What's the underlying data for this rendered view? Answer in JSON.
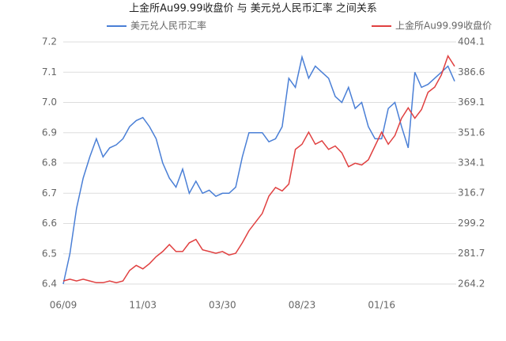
{
  "chart_data": {
    "type": "line",
    "title": "上金所Au99.99收盘价 与 美元兑人民币汇率 之间关系",
    "categories": [
      "06/09",
      null,
      null,
      null,
      null,
      null,
      null,
      null,
      null,
      null,
      null,
      null,
      "11/03",
      null,
      null,
      null,
      null,
      null,
      null,
      null,
      null,
      null,
      null,
      null,
      "03/30",
      null,
      null,
      null,
      null,
      null,
      null,
      null,
      null,
      null,
      null,
      null,
      "08/23",
      null,
      null,
      null,
      null,
      null,
      null,
      null,
      null,
      null,
      null,
      null,
      "01/16",
      null,
      null,
      null,
      null,
      null,
      null,
      null,
      null,
      null,
      null,
      null
    ],
    "series": [
      {
        "name": "美元兑人民币汇率",
        "color": "#4a7fd6",
        "values": [
          6.4,
          6.5,
          6.65,
          6.75,
          6.82,
          6.88,
          6.82,
          6.85,
          6.86,
          6.88,
          6.92,
          6.94,
          6.95,
          6.92,
          6.88,
          6.8,
          6.75,
          6.72,
          6.78,
          6.7,
          6.74,
          6.7,
          6.71,
          6.69,
          6.7,
          6.7,
          6.72,
          6.82,
          6.9,
          6.9,
          6.9,
          6.87,
          6.88,
          6.92,
          7.08,
          7.05,
          7.15,
          7.08,
          7.12,
          7.1,
          7.08,
          7.02,
          7.0,
          7.05,
          6.98,
          7.0,
          6.92,
          6.88,
          6.88,
          6.98,
          7.0,
          6.92,
          6.85,
          7.1,
          7.05,
          7.06,
          7.08,
          7.1,
          7.12,
          7.07
        ]
      },
      {
        "name": "上金所Au99.99收盘价",
        "color": "#e04040",
        "axis": "y2",
        "values": [
          266,
          267,
          266,
          267,
          266,
          265,
          265,
          266,
          265,
          266,
          272,
          275,
          273,
          276,
          280,
          283,
          287,
          283,
          283,
          288,
          290,
          284,
          283,
          282,
          283,
          281,
          282,
          288,
          295,
          300,
          305,
          315,
          320,
          318,
          322,
          342,
          345,
          352,
          345,
          347,
          342,
          344,
          340,
          332,
          334,
          333,
          336,
          344,
          352,
          345,
          350,
          360,
          366,
          360,
          365,
          375,
          378,
          385,
          396,
          390
        ]
      }
    ],
    "ylim": [
      6.4,
      7.2
    ],
    "yticks": [
      6.4,
      6.5,
      6.6,
      6.7,
      6.8,
      6.9,
      {
        "value": 7,
        "label": "7.0"
      },
      7.1,
      7.2
    ],
    "y2lim": [
      264.2,
      404.1
    ],
    "y2ticks": [
      264.2,
      281.7,
      299.2,
      316.7,
      334.1,
      351.6,
      369.1,
      386.6,
      404.1
    ],
    "grid": true
  }
}
